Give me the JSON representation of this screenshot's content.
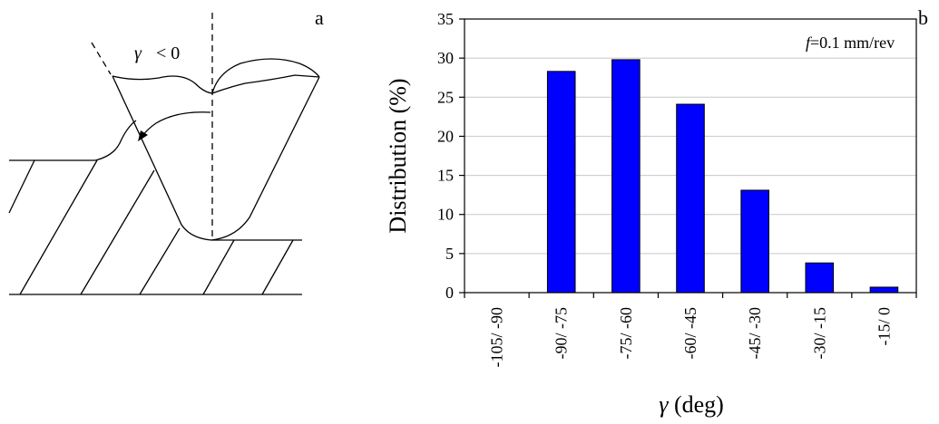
{
  "panel_a": {
    "label": "a",
    "gamma_symbol": "γ",
    "gamma_relation": "< 0"
  },
  "panel_b": {
    "label": "b"
  },
  "chart_data": {
    "type": "bar",
    "categories": [
      "-105/ -90",
      "-90/ -75",
      "-75/ -60",
      "-60/ -45",
      "-45/ -30",
      "-30/ -15",
      "-15/ 0"
    ],
    "values": [
      0,
      28.3,
      29.8,
      24.1,
      13.1,
      3.8,
      0.7
    ],
    "title": "",
    "annotation_italic": "f",
    "annotation_rest": "=0.1 mm/rev",
    "ylabel": "Distribution (%)",
    "xlabel_symbol": "γ",
    "xlabel_rest": " (deg)",
    "ylim": [
      0,
      35
    ],
    "yticks": [
      0,
      5,
      10,
      15,
      20,
      25,
      30,
      35
    ],
    "grid": true,
    "bar_color": "#0000ff",
    "grid_color": "#c8c8c8"
  }
}
